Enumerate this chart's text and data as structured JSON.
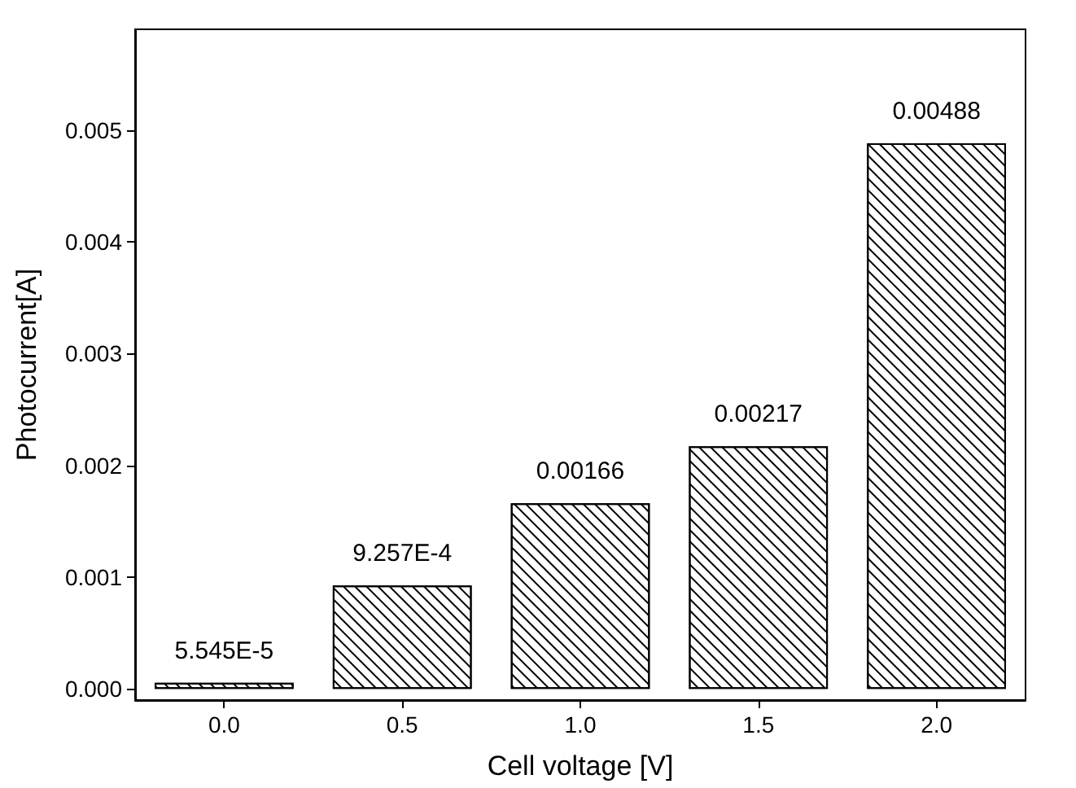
{
  "chart_data": {
    "type": "bar",
    "xlabel": "Cell voltage [V]",
    "ylabel": "Photocurrent[A]",
    "categories": [
      "0.0",
      "0.5",
      "1.0",
      "1.5",
      "2.0"
    ],
    "series": [
      {
        "color": "#000000",
        "values": [
          5.545e-05,
          0.0009257,
          0.00166,
          0.00217,
          0.00488
        ],
        "value_labels": [
          "5.545E-5",
          "9.257E-4",
          "0.00166",
          "0.00217",
          "0.00488"
        ]
      }
    ],
    "ylim": [
      -0.0001,
      0.0059
    ],
    "yticks": [
      {
        "value": 0,
        "label": "0.000"
      },
      {
        "value": 0.001,
        "label": "0.001"
      },
      {
        "value": 0.002,
        "label": "0.002"
      },
      {
        "value": 0.003,
        "label": "0.003"
      },
      {
        "value": 0.004,
        "label": "0.004"
      },
      {
        "value": 0.005,
        "label": "0.005"
      }
    ],
    "grid": false
  }
}
